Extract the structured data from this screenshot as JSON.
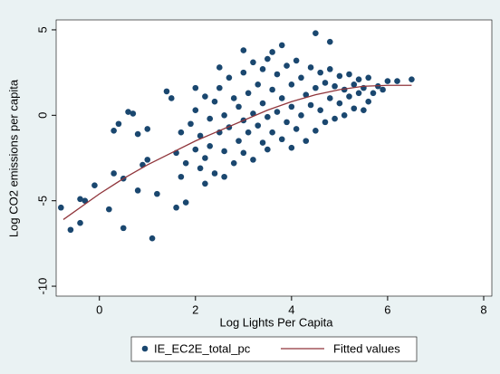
{
  "chart_data": {
    "type": "scatter",
    "x_label": "Log Lights Per Capita",
    "y_label": "Log CO2 emissions per capita",
    "xlim": [
      -0.9,
      8.17
    ],
    "ylim": [
      -10.58,
      5.58
    ],
    "xticks": [
      0,
      2,
      4,
      6,
      8
    ],
    "yticks": [
      -10,
      -5,
      0,
      5
    ],
    "grid": false,
    "legend": "bottom",
    "series": [
      {
        "name": "IE_EC2E_total_pc",
        "type": "scatter",
        "color": "#1a476f",
        "x": [
          -0.8,
          -0.6,
          -0.4,
          -0.3,
          -0.1,
          -0.4,
          0.2,
          0.5,
          1.1,
          0.3,
          0.5,
          0.6,
          0.7,
          0.4,
          0.8,
          1.0,
          1.2,
          1.6,
          1.8,
          1.0,
          0.9,
          0.8,
          0.3,
          4.5,
          4.8,
          6.5,
          6.2,
          3.0,
          1.4,
          1.5,
          1.6,
          1.7,
          1.8,
          1.9,
          2.0,
          2.0,
          2.1,
          2.1,
          2.2,
          2.2,
          2.3,
          2.3,
          2.4,
          2.4,
          2.5,
          2.5,
          2.6,
          2.6,
          2.7,
          2.7,
          2.8,
          2.8,
          2.9,
          2.9,
          3.0,
          3.0,
          3.0,
          3.1,
          3.1,
          3.2,
          3.2,
          3.2,
          3.3,
          3.3,
          3.4,
          3.4,
          3.4,
          3.5,
          3.5,
          3.5,
          3.6,
          3.6,
          3.7,
          3.7,
          3.8,
          3.8,
          3.8,
          3.9,
          3.9,
          4.0,
          4.0,
          4.0,
          4.1,
          4.1,
          4.2,
          4.2,
          4.3,
          4.3,
          4.4,
          4.4,
          4.5,
          4.5,
          4.6,
          4.6,
          4.7,
          4.7,
          4.8,
          4.8,
          4.9,
          4.9,
          5.0,
          5.0,
          5.1,
          5.1,
          5.2,
          5.2,
          5.3,
          5.3,
          5.4,
          5.4,
          5.5,
          5.5,
          5.6,
          5.7,
          5.8,
          5.9,
          6.0,
          5.6,
          3.6,
          2.5,
          2.0,
          1.7,
          2.2,
          2.6
        ],
        "values": [
          -5.4,
          -6.7,
          -6.3,
          -5.0,
          -4.1,
          -4.9,
          -5.5,
          -6.6,
          -7.2,
          -3.4,
          -3.7,
          0.2,
          0.1,
          -0.5,
          -1.1,
          -0.8,
          -4.6,
          -5.4,
          -5.1,
          -2.6,
          -2.9,
          -4.4,
          -0.9,
          4.8,
          4.3,
          2.1,
          2.0,
          3.8,
          1.4,
          1.0,
          -2.2,
          -1.0,
          -2.8,
          -0.5,
          -2.0,
          0.3,
          -3.1,
          -1.2,
          1.1,
          -2.5,
          -0.2,
          -1.8,
          0.8,
          -3.4,
          -1.0,
          1.6,
          -2.1,
          0.0,
          2.2,
          -0.7,
          -2.8,
          1.0,
          -1.5,
          0.5,
          2.5,
          -0.3,
          -2.2,
          1.3,
          -1.0,
          3.1,
          0.1,
          -2.6,
          1.8,
          -0.6,
          2.7,
          -1.6,
          0.7,
          3.3,
          -0.1,
          -2.0,
          1.5,
          -1.0,
          2.4,
          0.2,
          4.1,
          -1.4,
          1.0,
          2.9,
          -0.4,
          1.8,
          -1.9,
          0.5,
          3.2,
          -0.8,
          2.2,
          0.0,
          1.2,
          -1.5,
          2.8,
          0.6,
          1.6,
          -0.9,
          2.5,
          0.3,
          1.9,
          -0.4,
          2.7,
          1.0,
          1.7,
          -0.2,
          2.3,
          0.7,
          1.5,
          0.0,
          2.4,
          1.1,
          1.8,
          0.4,
          2.1,
          1.3,
          1.6,
          0.3,
          2.2,
          1.3,
          1.7,
          1.5,
          2.0,
          0.8,
          3.7,
          2.8,
          1.6,
          -3.6,
          -4.0,
          -3.6
        ]
      },
      {
        "name": "Fitted values",
        "type": "line",
        "color": "#90353b",
        "x": [
          -0.75,
          0,
          0.5,
          1,
          1.5,
          2,
          2.5,
          3,
          3.5,
          4,
          4.5,
          5,
          5.5,
          6,
          6.5
        ],
        "values": [
          -6.1,
          -4.6,
          -3.7,
          -2.9,
          -2.2,
          -1.5,
          -0.9,
          -0.3,
          0.3,
          0.8,
          1.2,
          1.5,
          1.7,
          1.75,
          1.75
        ]
      }
    ]
  }
}
